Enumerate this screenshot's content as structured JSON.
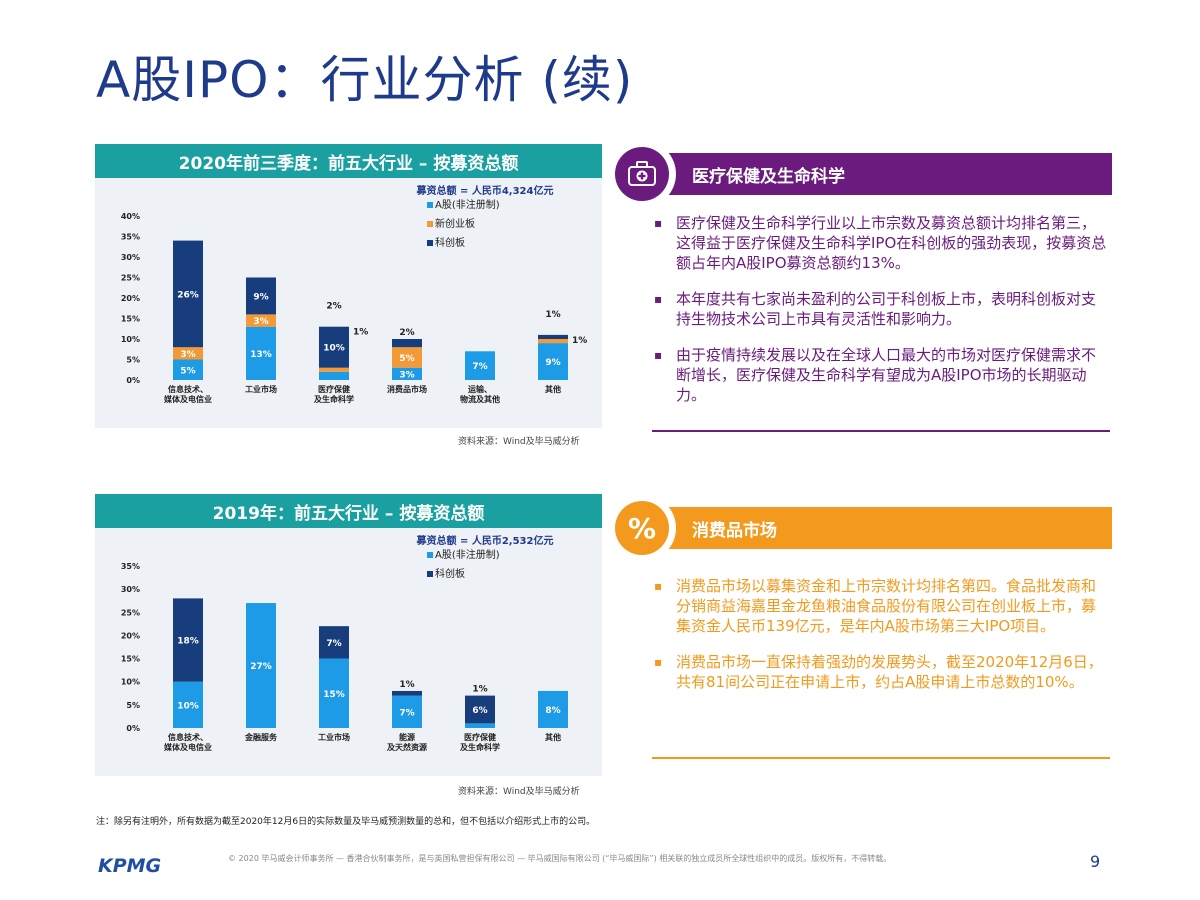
{
  "page": {
    "title": "A股IPO：行业分析 (续)",
    "footnote": "注：除另有注明外，所有数据为截至2020年12月6日的实际数量及毕马威预测数量的总和，但不包括以介绍形式上市的公司。",
    "logo": "KPMG",
    "legal": "© 2020 毕马威会计师事务所 — 香港合伙制事务所，是与英国私营担保有限公司 — 毕马威国际有限公司 (“毕马威国际”) 相关联的独立成员所全球性组织中的成员。版权所有，不得转载。",
    "page_number": "9"
  },
  "chart_data": [
    {
      "type": "bar",
      "stacked": true,
      "title": "2020年前三季度：前五大行业 – 按募资总额",
      "subtitle": "募资总额 = 人民币4,324亿元",
      "source": "资料来源：Wind及毕马威分析",
      "categories": [
        "信息技术、媒体及电信业",
        "工业市场",
        "医疗保健及生命科学",
        "消费品市场",
        "运输、物流及其他",
        "其他"
      ],
      "series": [
        {
          "name": "A股(非注册制)",
          "color": "#1e9be6",
          "values": [
            5,
            13,
            2,
            3,
            7,
            9
          ],
          "labels": [
            "5%",
            "13%",
            "2%",
            "3%",
            "7%",
            "9%"
          ]
        },
        {
          "name": "新创业板",
          "color": "#f39a37",
          "values": [
            3,
            3,
            1,
            5,
            0,
            1
          ],
          "labels": [
            "3%",
            "3%",
            "1%",
            "5%",
            "",
            "1%"
          ]
        },
        {
          "name": "科创板",
          "color": "#173d7d",
          "values": [
            26,
            9,
            10,
            2,
            0,
            1
          ],
          "labels": [
            "26%",
            "9%",
            "10%",
            "2%",
            "",
            "1%"
          ]
        }
      ],
      "ylim": [
        0,
        40
      ],
      "yticks": [
        "0%",
        "5%",
        "10%",
        "15%",
        "20%",
        "25%",
        "30%",
        "35%",
        "40%"
      ],
      "legend": "top-right"
    },
    {
      "type": "bar",
      "stacked": true,
      "title": "2019年：前五大行业 – 按募资总额",
      "subtitle": "募资总额 = 人民币2,532亿元",
      "source": "资料来源：Wind及毕马威分析",
      "categories": [
        "信息技术、媒体及电信业",
        "金融服务",
        "工业市场",
        "能源及天然资源",
        "医疗保健及生命科学",
        "其他"
      ],
      "series": [
        {
          "name": "A股(非注册制)",
          "color": "#1e9be6",
          "values": [
            10,
            27,
            15,
            7,
            1,
            8
          ],
          "labels": [
            "10%",
            "27%",
            "15%",
            "7%",
            "1%",
            "8%"
          ]
        },
        {
          "name": "科创板",
          "color": "#173d7d",
          "values": [
            18,
            0,
            7,
            1,
            6,
            0
          ],
          "labels": [
            "18%",
            "",
            "7%",
            "1%",
            "6%",
            ""
          ]
        }
      ],
      "ylim": [
        0,
        35
      ],
      "yticks": [
        "0%",
        "5%",
        "10%",
        "15%",
        "20%",
        "25%",
        "30%",
        "35%"
      ],
      "legend": "top-right"
    }
  ],
  "panels": [
    {
      "heading": "医疗保健及生命科学",
      "color": "#6a1b7d",
      "icon": "medical-kit-icon",
      "bullets": [
        "医疗保健及生命科学行业以上市宗数及募资总额计均排名第三，这得益于医疗保健及生命科学IPO在科创板的强劲表现，按募资总额占年内A股IPO募资总额约13%。",
        "本年度共有七家尚未盈利的公司于科创板上市，表明科创板对支持生物技术公司上市具有灵活性和影响力。",
        "由于疫情持续发展以及在全球人口最大的市场对医疗保健需求不断增长，医疗保健及生命科学有望成为A股IPO市场的长期驱动力。"
      ]
    },
    {
      "heading": "消费品市场",
      "color": "#f39a1e",
      "icon": "percent-tag-icon",
      "icon_text": "%",
      "bullets": [
        "消费品市场以募集资金和上市宗数计均排名第四。食品批发商和分销商益海嘉里金龙鱼粮油食品股份有限公司在创业板上市，募集资金人民币139亿元，是年内A股市场第三大IPO项目。",
        "消费品市场一直保持着强劲的发展势头，截至2020年12月6日，共有81间公司正在申请上市，约占A股申请上市总数的10%。"
      ]
    }
  ]
}
